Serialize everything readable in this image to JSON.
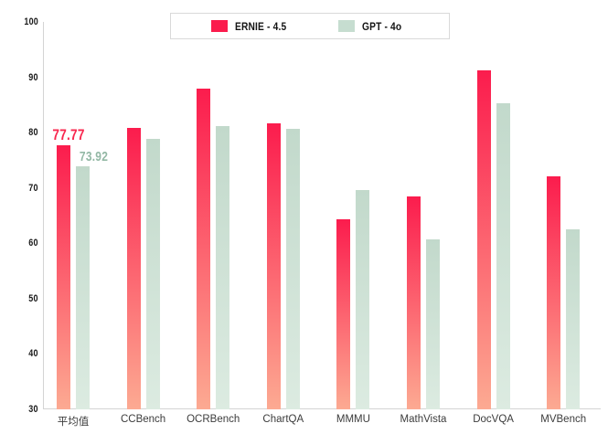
{
  "chart_data": {
    "type": "bar",
    "title": "",
    "categories": [
      "平均值",
      "CCBench",
      "OCRBench",
      "ChartQA",
      "MMMU",
      "MathVista",
      "DocVQA",
      "MVBench"
    ],
    "series": [
      {
        "name": "ERNIE - 4.5",
        "values": [
          77.77,
          80.8,
          87.9,
          81.6,
          64.4,
          68.5,
          91.3,
          72.1
        ],
        "color_top": "#fb1c4d",
        "color_bottom": "#fcaa92",
        "swatch_color": "#fb1c4d",
        "label_color": "#f8274e"
      },
      {
        "name": "GPT - 4o",
        "values": [
          73.92,
          78.9,
          81.2,
          80.7,
          69.6,
          60.7,
          85.3,
          62.5
        ],
        "color_top": "#c2d9cb",
        "color_bottom": "#dcebe1",
        "swatch_color": "#c6ddd0",
        "label_color": "#93b8a5"
      }
    ],
    "data_labels": [
      {
        "series": 0,
        "category": 0,
        "text": "77.77"
      },
      {
        "series": 1,
        "category": 0,
        "text": "73.92"
      }
    ],
    "y_ticks": [
      100,
      90,
      80,
      70,
      60,
      50,
      40,
      30
    ],
    "ylim": [
      30,
      100
    ],
    "grid": false,
    "legend_position": "top-center",
    "axis_color": "#d4d4d4",
    "tick_label_color": "#1a1a1a",
    "category_label_color": "#3c3c3c",
    "background_color": "#ffffff"
  }
}
